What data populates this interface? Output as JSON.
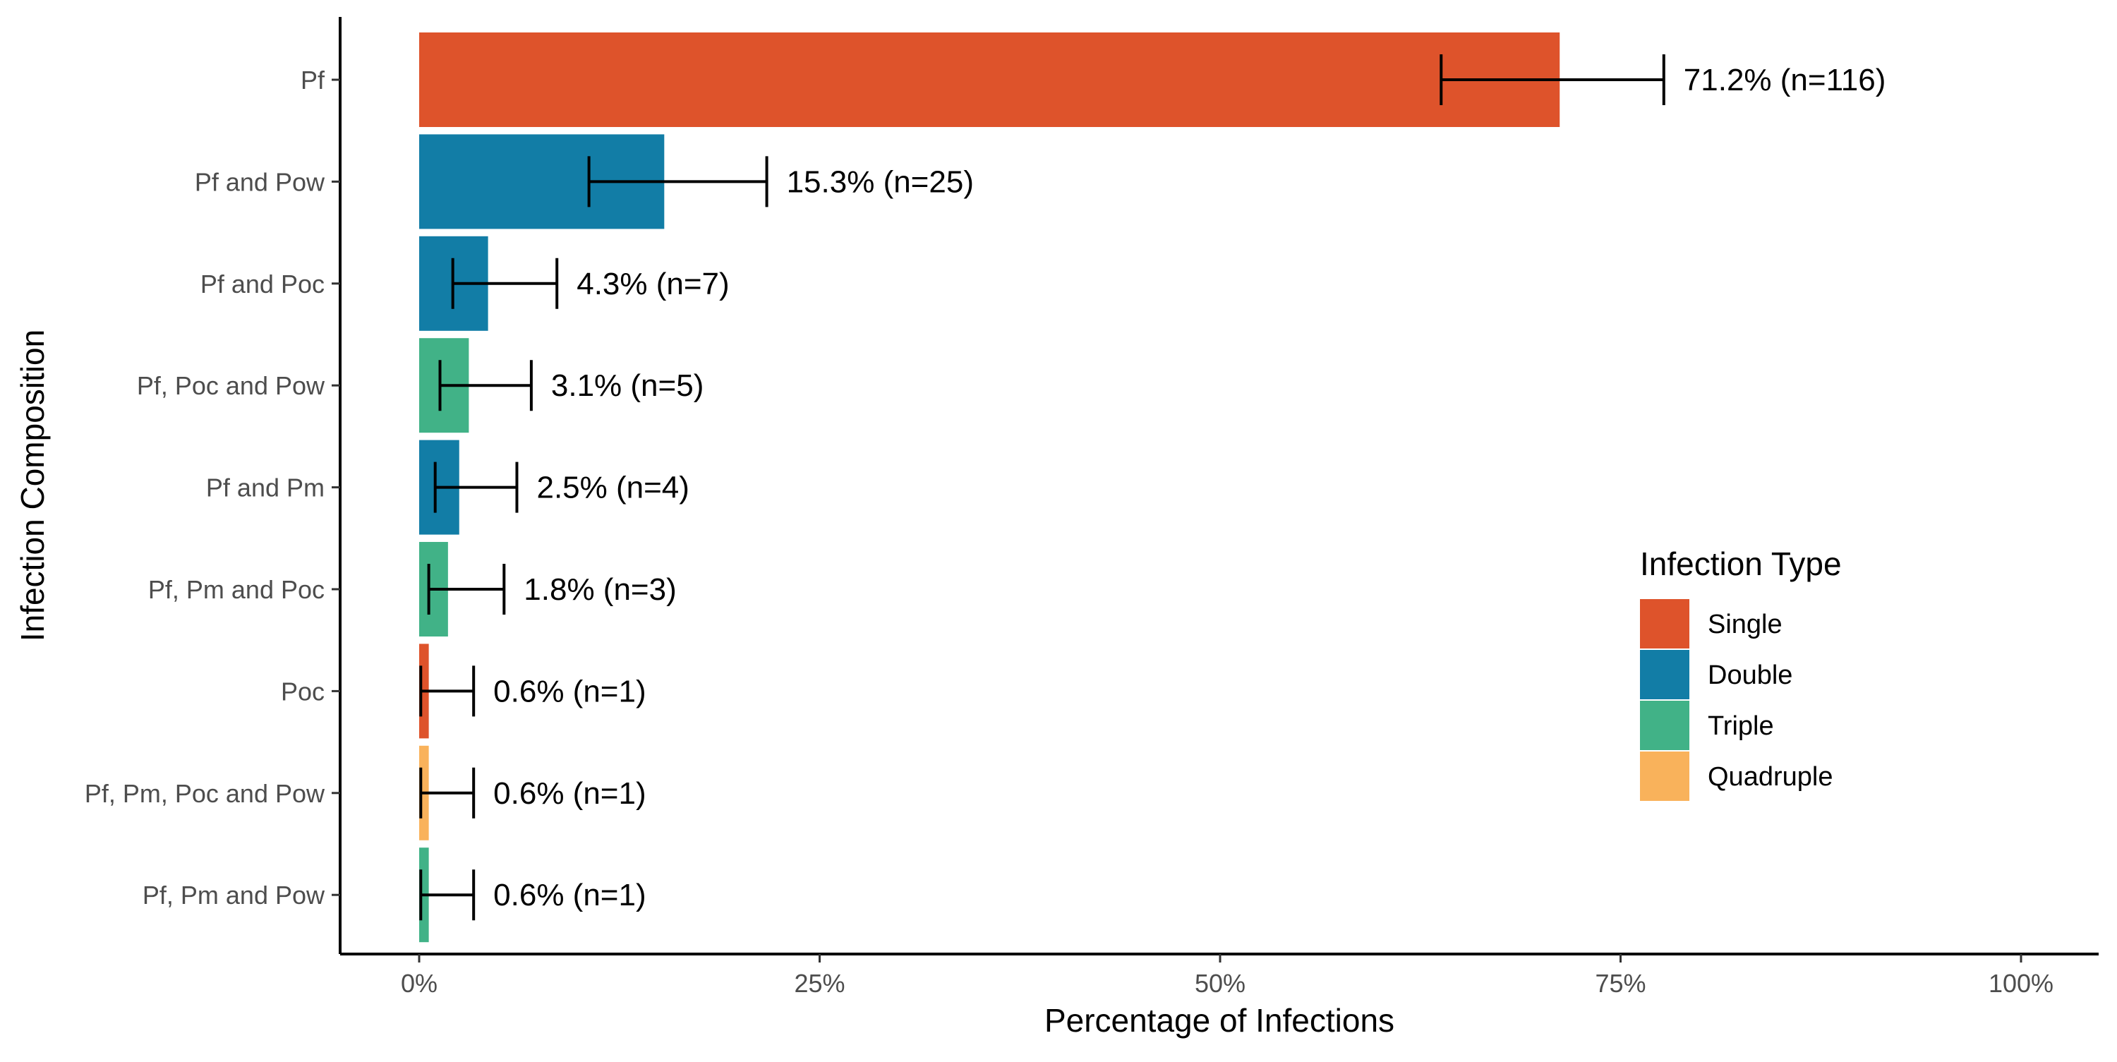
{
  "chart_data": {
    "type": "bar",
    "orientation": "horizontal",
    "xlabel": "Percentage of Infections",
    "ylabel": "Infection Composition",
    "xlim": [
      0,
      100
    ],
    "x_ticks": [
      "0%",
      "25%",
      "50%",
      "75%",
      "100%"
    ],
    "x_tick_values": [
      0,
      25,
      50,
      75,
      100
    ],
    "grid": false,
    "legend": {
      "title": "Infection Type",
      "placement": "right",
      "entries": [
        {
          "label": "Single",
          "color": "#DE532B"
        },
        {
          "label": "Double",
          "color": "#127DA6"
        },
        {
          "label": "Triple",
          "color": "#41B287"
        },
        {
          "label": "Quadruple",
          "color": "#F9B25B"
        }
      ]
    },
    "bars": [
      {
        "category": "Pf",
        "value": 71.2,
        "type": "Single",
        "error": [
          63.8,
          77.7
        ],
        "label": "71.2% (n=116)"
      },
      {
        "category": "Pf and Pow",
        "value": 15.3,
        "type": "Double",
        "error": [
          10.6,
          21.7
        ],
        "label": "15.3% (n=25)"
      },
      {
        "category": "Pf and Poc",
        "value": 4.3,
        "type": "Double",
        "error": [
          2.1,
          8.6
        ],
        "label": "4.3% (n=7)"
      },
      {
        "category": "Pf, Poc and Pow",
        "value": 3.1,
        "type": "Triple",
        "error": [
          1.3,
          7.0
        ],
        "label": "3.1% (n=5)"
      },
      {
        "category": "Pf and Pm",
        "value": 2.5,
        "type": "Double",
        "error": [
          1.0,
          6.1
        ],
        "label": "2.5% (n=4)"
      },
      {
        "category": "Pf, Pm and Poc",
        "value": 1.8,
        "type": "Triple",
        "error": [
          0.6,
          5.3
        ],
        "label": "1.8% (n=3)"
      },
      {
        "category": "Poc",
        "value": 0.6,
        "type": "Single",
        "error": [
          0.1,
          3.4
        ],
        "label": "0.6% (n=1)"
      },
      {
        "category": "Pf, Pm, Poc and Pow",
        "value": 0.6,
        "type": "Quadruple",
        "error": [
          0.1,
          3.4
        ],
        "label": "0.6% (n=1)"
      },
      {
        "category": "Pf, Pm and Pow",
        "value": 0.6,
        "type": "Triple",
        "error": [
          0.1,
          3.4
        ],
        "label": "0.6% (n=1)"
      }
    ]
  }
}
